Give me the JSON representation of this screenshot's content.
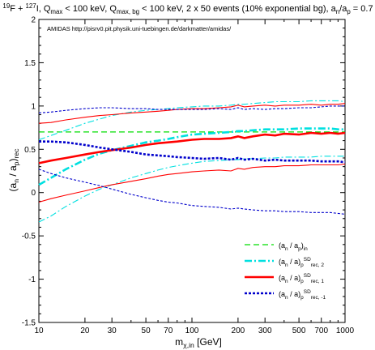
{
  "chart_data": {
    "type": "line",
    "title": {
      "parts": [
        {
          "t": "19",
          "s": "sup"
        },
        {
          "t": "F + "
        },
        {
          "t": "127",
          "s": "sup"
        },
        {
          "t": "I, Q"
        },
        {
          "t": "max",
          "s": "sub"
        },
        {
          "t": " < 100 keV, Q"
        },
        {
          "t": "max, bg",
          "s": "sub"
        },
        {
          "t": " < 100 keV, 2 x 50 events (10% exponential bg), a"
        },
        {
          "t": "n",
          "s": "sub"
        },
        {
          "t": "/a"
        },
        {
          "t": "p",
          "s": "sub"
        },
        {
          "t": " = 0.7"
        }
      ]
    },
    "annotation": "AMIDAS   http://pisrv0.pit.physik.uni-tuebingen.de/darkmatter/amidas/",
    "xlabel": {
      "parts": [
        {
          "t": "m"
        },
        {
          "t": "χ,in",
          "s": "sub"
        },
        {
          "t": " [GeV]"
        }
      ]
    },
    "ylabel": {
      "parts": [
        {
          "t": "(a"
        },
        {
          "t": "n",
          "s": "sub"
        },
        {
          "t": " / a"
        },
        {
          "t": "p",
          "s": "sub"
        },
        {
          "t": ")"
        },
        {
          "t": "rec",
          "s": "sub"
        }
      ]
    },
    "xscale": "log",
    "xlim": [
      10,
      1000
    ],
    "ylim": [
      -1.5,
      2
    ],
    "xticks": [
      10,
      20,
      30,
      50,
      70,
      100,
      200,
      300,
      500,
      700,
      1000
    ],
    "yticks": [
      -1.5,
      -1,
      -0.5,
      0,
      0.5,
      1,
      1.5,
      2
    ],
    "grid": false,
    "legend_position": "bottom-right",
    "series": [
      {
        "name": "(a_n / a_p)_in",
        "legend_parts": [
          {
            "t": "(a"
          },
          {
            "t": "n",
            "s": "sub"
          },
          {
            "t": " / a"
          },
          {
            "t": "p",
            "s": "sub"
          },
          {
            "t": ")"
          },
          {
            "t": "in",
            "s": "sub"
          }
        ],
        "color": "#00dd00",
        "style": "dashed",
        "weight": "thin",
        "band": false,
        "x": [
          10,
          1000
        ],
        "y": [
          0.7,
          0.7
        ]
      },
      {
        "name": "(a_n / a_p)^SD_rec, 2",
        "legend_parts": [
          {
            "t": "(a"
          },
          {
            "t": "n",
            "s": "sub"
          },
          {
            "t": " / a"
          },
          {
            "t": ")"
          },
          {
            "t": "p",
            "s": "sub"
          },
          {
            "t": "SD",
            "s": "sup"
          },
          {
            "t": "rec, 2",
            "s": "sub"
          }
        ],
        "color": "#00e0e0",
        "style": "dashdot",
        "x": [
          10,
          12,
          15,
          20,
          25,
          30,
          40,
          50,
          60,
          70,
          80,
          100,
          120,
          150,
          180,
          200,
          220,
          250,
          300,
          350,
          400,
          500,
          600,
          700,
          800,
          900,
          1000
        ],
        "y": [
          0.09,
          0.17,
          0.27,
          0.38,
          0.45,
          0.49,
          0.54,
          0.58,
          0.6,
          0.62,
          0.64,
          0.67,
          0.68,
          0.69,
          0.7,
          0.71,
          0.71,
          0.72,
          0.73,
          0.73,
          0.73,
          0.74,
          0.74,
          0.74,
          0.74,
          0.73,
          0.73
        ],
        "y_upper": [
          0.61,
          0.66,
          0.72,
          0.8,
          0.85,
          0.89,
          0.93,
          0.95,
          0.96,
          0.97,
          0.98,
          0.99,
          1.0,
          1.0,
          1.01,
          1.02,
          1.02,
          1.03,
          1.04,
          1.05,
          1.05,
          1.05,
          1.06,
          1.06,
          1.06,
          1.06,
          1.05
        ],
        "y_lower": [
          -0.34,
          -0.27,
          -0.16,
          -0.04,
          0.04,
          0.09,
          0.17,
          0.22,
          0.26,
          0.29,
          0.31,
          0.34,
          0.36,
          0.37,
          0.38,
          0.38,
          0.39,
          0.39,
          0.4,
          0.4,
          0.41,
          0.41,
          0.41,
          0.42,
          0.42,
          0.42,
          0.42
        ]
      },
      {
        "name": "(a_n / a_p)^SD_rec, 1",
        "legend_parts": [
          {
            "t": "(a"
          },
          {
            "t": "n",
            "s": "sub"
          },
          {
            "t": " / a"
          },
          {
            "t": ")"
          },
          {
            "t": "p",
            "s": "sub"
          },
          {
            "t": "SD",
            "s": "sup"
          },
          {
            "t": "rec, 1",
            "s": "sub"
          }
        ],
        "color": "#ff0000",
        "style": "solid",
        "x": [
          10,
          12,
          15,
          20,
          25,
          30,
          40,
          50,
          60,
          70,
          80,
          100,
          120,
          150,
          180,
          200,
          220,
          250,
          300,
          350,
          400,
          500,
          600,
          700,
          800,
          900,
          1000
        ],
        "y": [
          0.34,
          0.37,
          0.4,
          0.44,
          0.47,
          0.49,
          0.52,
          0.55,
          0.57,
          0.58,
          0.59,
          0.61,
          0.62,
          0.62,
          0.63,
          0.65,
          0.63,
          0.65,
          0.67,
          0.66,
          0.68,
          0.67,
          0.69,
          0.68,
          0.69,
          0.68,
          0.69
        ],
        "y_upper": [
          0.8,
          0.81,
          0.84,
          0.87,
          0.89,
          0.9,
          0.92,
          0.93,
          0.94,
          0.95,
          0.96,
          0.97,
          0.97,
          0.98,
          0.99,
          1.01,
          0.99,
          1.0,
          1.01,
          1.0,
          1.01,
          1.01,
          1.02,
          1.01,
          1.02,
          1.02,
          1.03
        ],
        "y_lower": [
          -0.11,
          -0.07,
          -0.03,
          0.02,
          0.06,
          0.09,
          0.13,
          0.16,
          0.19,
          0.21,
          0.22,
          0.24,
          0.25,
          0.26,
          0.25,
          0.28,
          0.27,
          0.29,
          0.3,
          0.3,
          0.31,
          0.31,
          0.32,
          0.32,
          0.32,
          0.32,
          0.33
        ]
      },
      {
        "name": "(a_n / a_p)^SD_rec, -1",
        "legend_parts": [
          {
            "t": "(a"
          },
          {
            "t": "n",
            "s": "sub"
          },
          {
            "t": " / a"
          },
          {
            "t": ")"
          },
          {
            "t": "p",
            "s": "sub"
          },
          {
            "t": "SD",
            "s": "sup"
          },
          {
            "t": "rec, -1",
            "s": "sub"
          }
        ],
        "color": "#0000cc",
        "style": "dotted",
        "x": [
          10,
          12,
          15,
          20,
          25,
          30,
          40,
          50,
          60,
          70,
          80,
          100,
          120,
          150,
          180,
          200,
          220,
          250,
          300,
          350,
          400,
          500,
          600,
          700,
          800,
          900,
          1000
        ],
        "y": [
          0.59,
          0.59,
          0.58,
          0.55,
          0.52,
          0.5,
          0.47,
          0.44,
          0.43,
          0.42,
          0.41,
          0.4,
          0.39,
          0.4,
          0.38,
          0.4,
          0.38,
          0.39,
          0.37,
          0.38,
          0.37,
          0.37,
          0.37,
          0.36,
          0.36,
          0.36,
          0.35
        ],
        "y_upper": [
          0.92,
          0.93,
          0.95,
          0.97,
          0.98,
          0.98,
          0.97,
          0.97,
          0.96,
          0.96,
          0.96,
          0.96,
          0.96,
          0.97,
          0.96,
          0.98,
          0.96,
          0.97,
          0.96,
          0.97,
          0.97,
          0.98,
          0.98,
          0.99,
          1.0,
          1.0,
          1.0
        ],
        "y_lower": [
          0.27,
          0.22,
          0.17,
          0.12,
          0.08,
          0.04,
          -0.02,
          -0.06,
          -0.09,
          -0.11,
          -0.12,
          -0.15,
          -0.16,
          -0.17,
          -0.19,
          -0.18,
          -0.19,
          -0.2,
          -0.21,
          -0.21,
          -0.22,
          -0.22,
          -0.23,
          -0.23,
          -0.23,
          -0.24,
          -0.25
        ]
      }
    ]
  }
}
